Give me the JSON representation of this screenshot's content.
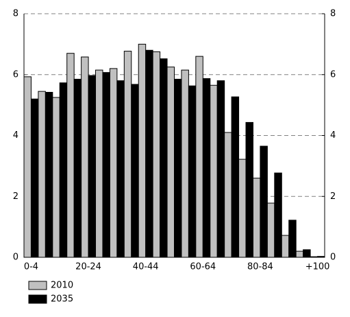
{
  "chart_data": {
    "type": "bar",
    "categories": [
      "0-4",
      null,
      null,
      null,
      "20-24",
      null,
      null,
      null,
      "40-44",
      null,
      null,
      null,
      "60-64",
      null,
      null,
      null,
      "80-84",
      null,
      null,
      null,
      "+100"
    ],
    "series": [
      {
        "name": "2010",
        "color": "#c0c0c0",
        "values": [
          5.93,
          5.45,
          5.25,
          6.7,
          6.58,
          6.15,
          6.2,
          6.77,
          7.0,
          6.75,
          6.25,
          6.15,
          6.6,
          5.65,
          4.1,
          3.22,
          2.6,
          1.78,
          0.72,
          0.2,
          0.02
        ]
      },
      {
        "name": "2035",
        "color": "#000000",
        "values": [
          5.2,
          5.42,
          5.73,
          5.85,
          5.97,
          6.07,
          5.8,
          5.68,
          6.8,
          6.52,
          5.85,
          5.63,
          5.87,
          5.8,
          5.27,
          4.43,
          3.65,
          2.77,
          1.22,
          0.25,
          0.03
        ]
      }
    ],
    "ylim": [
      0,
      8
    ],
    "yticks": [
      0,
      2,
      4,
      6,
      8
    ],
    "y2lim": [
      0,
      8
    ],
    "y2ticks": [
      0,
      2,
      4,
      6,
      8
    ],
    "grid": true,
    "legend": "bottom-left"
  }
}
